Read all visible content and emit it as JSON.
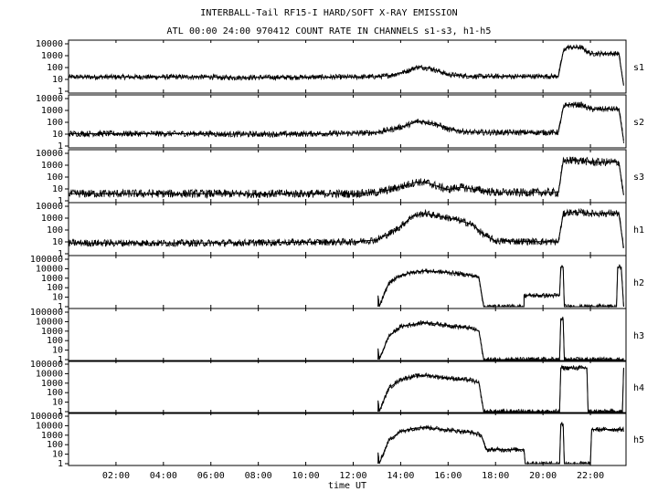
{
  "header": {
    "title": "INTERBALL-Tail RF15-I HARD/SOFT X-RAY EMISSION",
    "subtitle": "ATL 00:00 24:00 970412  COUNT RATE IN CHANNELS s1-s3, h1-h5"
  },
  "chart_data": {
    "type": "line",
    "xlabel": "time UT",
    "xlim": [
      0,
      23.5
    ],
    "x_ticks": [
      2,
      4,
      6,
      8,
      10,
      12,
      14,
      16,
      18,
      20,
      22
    ],
    "x_tick_labels": [
      "02:00",
      "04:00",
      "06:00",
      "08:00",
      "10:00",
      "12:00",
      "14:00",
      "16:00",
      "18:00",
      "20:00",
      "22:00"
    ],
    "log_scale": true,
    "grid": false,
    "panels": [
      {
        "name": "s1",
        "ylim": [
          1,
          10000
        ],
        "y_ticks": [
          1,
          10,
          100,
          1000,
          10000
        ],
        "y_tick_labels": [
          "1",
          "10",
          "100",
          "1000",
          "10000"
        ],
        "points": [
          [
            0,
            16
          ],
          [
            6.1,
            16
          ],
          [
            6.3,
            14
          ],
          [
            9,
            15
          ],
          [
            12,
            16
          ],
          [
            13,
            17
          ],
          [
            13.6,
            22
          ],
          [
            14.2,
            45
          ],
          [
            14.7,
            110
          ],
          [
            15.2,
            90
          ],
          [
            15.6,
            50
          ],
          [
            16,
            25
          ],
          [
            17,
            18
          ],
          [
            20.5,
            18
          ],
          [
            20.65,
            19
          ],
          [
            20.85,
            2000
          ],
          [
            21,
            5000
          ],
          [
            21.5,
            5000
          ],
          [
            21.6,
            5000
          ],
          [
            22,
            1500
          ],
          [
            23.2,
            1500
          ],
          [
            23.4,
            3
          ]
        ],
        "noise": 0.22
      },
      {
        "name": "s2",
        "ylim": [
          1,
          10000
        ],
        "y_ticks": [
          1,
          10,
          100,
          1000,
          10000
        ],
        "y_tick_labels": [
          "1",
          "10",
          "100",
          "1000",
          "10000"
        ],
        "points": [
          [
            0,
            11
          ],
          [
            6.1,
            11
          ],
          [
            6.3,
            10
          ],
          [
            9,
            10
          ],
          [
            12,
            12
          ],
          [
            13,
            14
          ],
          [
            13.6,
            25
          ],
          [
            14.2,
            50
          ],
          [
            14.7,
            120
          ],
          [
            15.2,
            100
          ],
          [
            15.6,
            60
          ],
          [
            16,
            25
          ],
          [
            17,
            14
          ],
          [
            20.5,
            14
          ],
          [
            20.65,
            15
          ],
          [
            20.85,
            1500
          ],
          [
            21,
            3000
          ],
          [
            21.5,
            3000
          ],
          [
            21.6,
            3000
          ],
          [
            22,
            1300
          ],
          [
            23.2,
            1300
          ],
          [
            23.4,
            3
          ]
        ],
        "noise": 0.25
      },
      {
        "name": "s3",
        "ylim": [
          1,
          10000
        ],
        "y_ticks": [
          1,
          10,
          100,
          1000,
          10000
        ],
        "y_tick_labels": [
          "1",
          "10",
          "100",
          "1000",
          "10000"
        ],
        "points": [
          [
            0,
            4
          ],
          [
            6.1,
            4
          ],
          [
            6.3,
            4
          ],
          [
            9,
            4
          ],
          [
            12,
            4
          ],
          [
            13,
            5
          ],
          [
            13.6,
            9
          ],
          [
            14.2,
            20
          ],
          [
            14.7,
            40
          ],
          [
            15.2,
            30
          ],
          [
            15.6,
            15
          ],
          [
            16,
            9
          ],
          [
            16.5,
            14
          ],
          [
            17,
            10
          ],
          [
            18,
            5
          ],
          [
            20.5,
            5
          ],
          [
            20.65,
            5
          ],
          [
            20.85,
            2000
          ],
          [
            21,
            2500
          ],
          [
            21.5,
            2500
          ],
          [
            21.6,
            2500
          ],
          [
            22,
            1800
          ],
          [
            23.2,
            1800
          ],
          [
            23.4,
            3
          ]
        ],
        "noise": 0.35
      },
      {
        "name": "h1",
        "ylim": [
          1,
          10000
        ],
        "y_ticks": [
          1,
          10,
          100,
          1000,
          10000
        ],
        "y_tick_labels": [
          "1",
          "10",
          "100",
          "1000",
          "10000"
        ],
        "points": [
          [
            0,
            8
          ],
          [
            6.1,
            8
          ],
          [
            6.3,
            8
          ],
          [
            9,
            9
          ],
          [
            12,
            10
          ],
          [
            13,
            15
          ],
          [
            13.6,
            60
          ],
          [
            14,
            200
          ],
          [
            14.5,
            1500
          ],
          [
            15,
            2500
          ],
          [
            15.6,
            1500
          ],
          [
            16.3,
            800
          ],
          [
            17,
            300
          ],
          [
            17.5,
            40
          ],
          [
            18,
            12
          ],
          [
            20.5,
            10
          ],
          [
            20.65,
            10
          ],
          [
            20.85,
            2000
          ],
          [
            21,
            3000
          ],
          [
            21.5,
            3000
          ],
          [
            21.6,
            3000
          ],
          [
            22,
            2500
          ],
          [
            23.2,
            2500
          ],
          [
            23.4,
            3
          ]
        ],
        "noise": 0.3
      },
      {
        "name": "h2",
        "ylim": [
          1,
          100000
        ],
        "y_ticks": [
          1,
          10,
          100,
          1000,
          10000,
          100000
        ],
        "y_tick_labels": [
          "1",
          "10",
          "100",
          "1000",
          "10000",
          "100000"
        ],
        "points": [
          [
            13.05,
            1
          ],
          [
            13.05,
            15
          ],
          [
            13.1,
            1
          ],
          [
            13.5,
            300
          ],
          [
            14,
            2000
          ],
          [
            14.5,
            4000
          ],
          [
            15,
            6000
          ],
          [
            16,
            4000
          ],
          [
            17,
            2000
          ],
          [
            17.3,
            1200
          ],
          [
            17.5,
            1
          ],
          [
            19.2,
            1
          ],
          [
            19.2,
            15
          ],
          [
            20.7,
            15
          ],
          [
            20.75,
            15000
          ],
          [
            20.85,
            15000
          ],
          [
            20.9,
            1
          ],
          [
            23.1,
            1
          ],
          [
            23.15,
            15000
          ],
          [
            23.3,
            15000
          ],
          [
            23.4,
            1
          ]
        ],
        "noise": 0.25
      },
      {
        "name": "h3",
        "ylim": [
          1,
          100000
        ],
        "y_ticks": [
          1,
          10,
          100,
          1000,
          10000,
          100000
        ],
        "y_tick_labels": [
          "1",
          "10",
          "100",
          "1000",
          "10000",
          "100000"
        ],
        "points": [
          [
            13.05,
            1
          ],
          [
            13.05,
            15
          ],
          [
            13.1,
            1
          ],
          [
            13.5,
            300
          ],
          [
            14,
            3000
          ],
          [
            14.5,
            5000
          ],
          [
            15,
            8000
          ],
          [
            16,
            4000
          ],
          [
            17,
            2000
          ],
          [
            17.3,
            1000
          ],
          [
            17.5,
            1
          ],
          [
            20.7,
            1
          ],
          [
            20.75,
            20000
          ],
          [
            20.85,
            20000
          ],
          [
            20.9,
            1
          ],
          [
            23.4,
            1
          ]
        ],
        "noise": 0.25
      },
      {
        "name": "h4",
        "ylim": [
          1,
          100000
        ],
        "y_ticks": [
          1,
          10,
          100,
          1000,
          10000,
          100000
        ],
        "y_tick_labels": [
          "1",
          "10",
          "100",
          "1000",
          "10000",
          "100000"
        ],
        "points": [
          [
            13.05,
            1
          ],
          [
            13.05,
            15
          ],
          [
            13.1,
            1
          ],
          [
            13.5,
            300
          ],
          [
            14,
            2500
          ],
          [
            14.5,
            5000
          ],
          [
            15,
            7000
          ],
          [
            16,
            3500
          ],
          [
            17,
            2000
          ],
          [
            17.3,
            1000
          ],
          [
            17.5,
            1
          ],
          [
            20.7,
            1
          ],
          [
            20.75,
            40000
          ],
          [
            20.85,
            40000
          ],
          [
            21.85,
            40000
          ],
          [
            21.9,
            1
          ],
          [
            23.35,
            1
          ],
          [
            23.4,
            40000
          ]
        ],
        "noise": 0.25
      },
      {
        "name": "h5",
        "ylim": [
          1,
          100000
        ],
        "y_ticks": [
          1,
          10,
          100,
          1000,
          10000,
          100000
        ],
        "y_tick_labels": [
          "1",
          "10",
          "100",
          "1000",
          "10000",
          "100000"
        ],
        "points": [
          [
            13.05,
            1
          ],
          [
            13.05,
            15
          ],
          [
            13.1,
            1
          ],
          [
            13.5,
            300
          ],
          [
            14,
            2500
          ],
          [
            14.5,
            5000
          ],
          [
            15,
            7000
          ],
          [
            16,
            3500
          ],
          [
            17,
            2000
          ],
          [
            17.4,
            1000
          ],
          [
            17.6,
            30
          ],
          [
            19.2,
            30
          ],
          [
            19.25,
            1
          ],
          [
            20.7,
            1
          ],
          [
            20.75,
            15000
          ],
          [
            20.85,
            15000
          ],
          [
            20.9,
            1
          ],
          [
            22,
            1
          ],
          [
            22.05,
            4000
          ],
          [
            23.4,
            4000
          ]
        ],
        "noise": 0.25
      }
    ]
  }
}
